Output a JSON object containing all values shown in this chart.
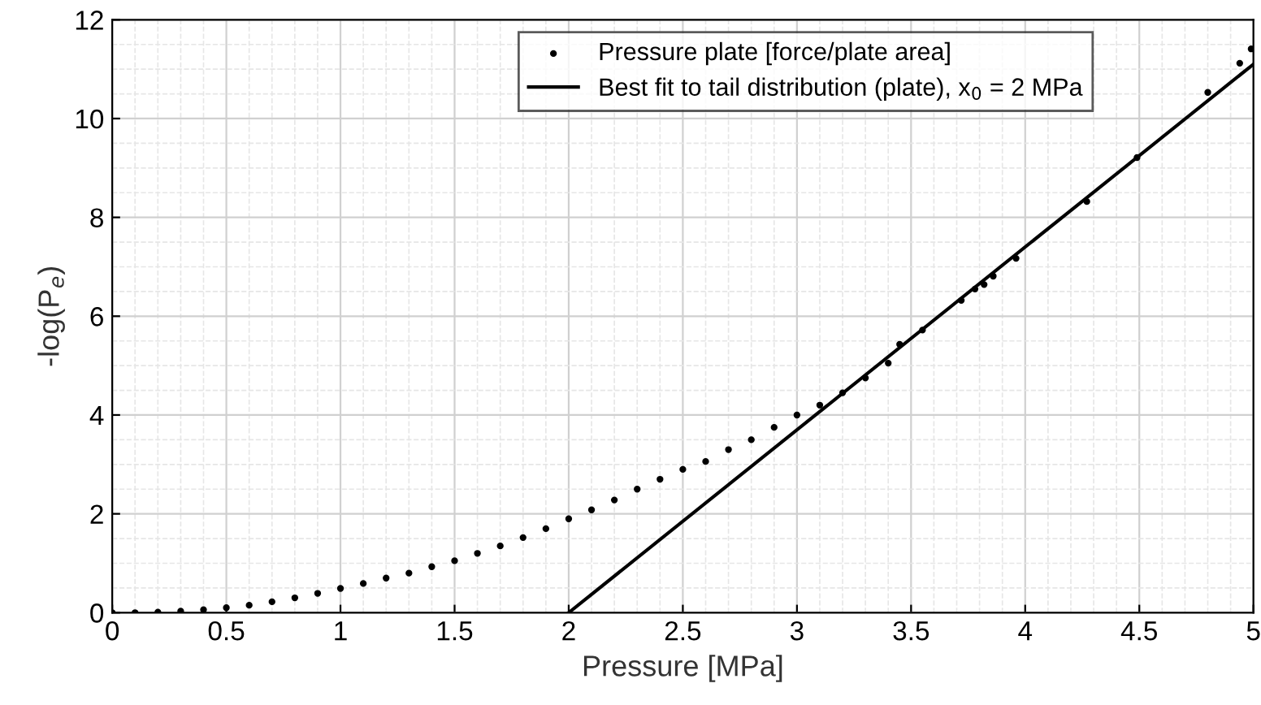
{
  "chart_data": {
    "type": "scatter",
    "xlabel": "Pressure [MPa]",
    "ylabel": "-log(P$_{e}$)",
    "xlim": [
      0,
      5
    ],
    "ylim": [
      0,
      12
    ],
    "xticks": [
      0,
      0.5,
      1,
      1.5,
      2,
      2.5,
      3,
      3.5,
      4,
      4.5,
      5
    ],
    "yticks": [
      0,
      2,
      4,
      6,
      8,
      10,
      12
    ],
    "grid": true,
    "legend": "top right",
    "series": [
      {
        "name": "Pressure plate [force/plate area]",
        "marker": "circle",
        "color": "#000000",
        "x": [
          0,
          0.1,
          0.2,
          0.3,
          0.4,
          0.5,
          0.6,
          0.7,
          0.8,
          0.9,
          1.0,
          1.1,
          1.2,
          1.3,
          1.4,
          1.5,
          1.6,
          1.7,
          1.8,
          1.9,
          2.0,
          2.1,
          2.2,
          2.3,
          2.4,
          2.5,
          2.6,
          2.7,
          2.8,
          2.9,
          3.0,
          3.1,
          3.2,
          3.3,
          3.4,
          3.45,
          3.55,
          3.72,
          3.78,
          3.82,
          3.86,
          3.96,
          4.27,
          4.49,
          4.8,
          4.94,
          4.99
        ],
        "values": [
          0,
          0,
          0.01,
          0.03,
          0.06,
          0.1,
          0.15,
          0.22,
          0.3,
          0.39,
          0.49,
          0.59,
          0.7,
          0.8,
          0.93,
          1.05,
          1.2,
          1.35,
          1.52,
          1.7,
          1.9,
          2.08,
          2.28,
          2.5,
          2.7,
          2.9,
          3.06,
          3.3,
          3.5,
          3.75,
          4.0,
          4.2,
          4.45,
          4.75,
          5.05,
          5.43,
          5.72,
          6.32,
          6.55,
          6.64,
          6.81,
          7.17,
          8.32,
          9.21,
          10.53,
          11.12,
          11.41
        ]
      },
      {
        "name": "Best fit to tail distribution (plate), x$_{0}$ = 2 MPa",
        "type": "line",
        "marker": "none",
        "line_style": "solid",
        "color": "#000000",
        "x": [
          2,
          5
        ],
        "values": [
          0,
          11.1
        ]
      }
    ]
  }
}
